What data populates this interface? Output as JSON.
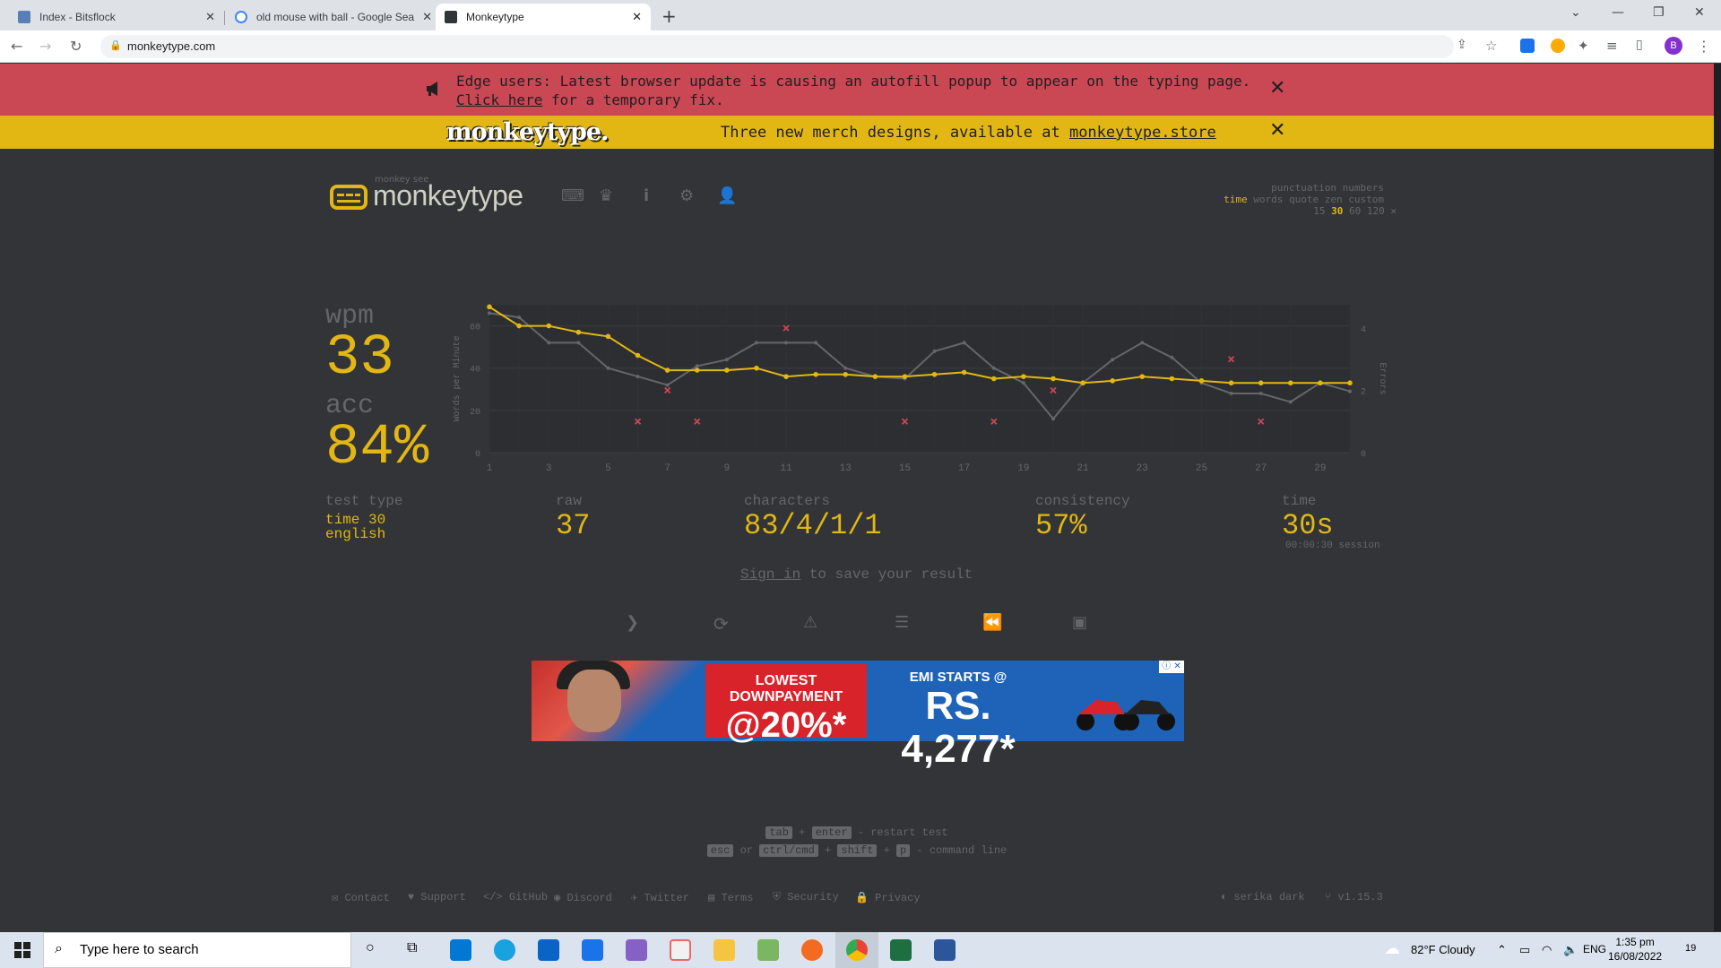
{
  "browser": {
    "tabs": [
      {
        "title": "Index - Bitsflock",
        "favicon_color": "#5a7fb8"
      },
      {
        "title": "old mouse with ball - Google Sea",
        "favicon_color": "#4285f4"
      },
      {
        "title": "Monkeytype",
        "favicon_color": "#323437"
      }
    ],
    "url": "monkeytype.com",
    "profile_initial": "B"
  },
  "alerts": {
    "edge_message": "Edge users: Latest browser update is causing an autofill popup to appear on the typing page.",
    "edge_link": "Click here",
    "edge_suffix": "for a temporary fix.",
    "merch_logo": "monkeytype.",
    "merch_message": "Three new merch designs, available at",
    "merch_link": "monkeytype.store"
  },
  "header": {
    "tagline": "monkey see",
    "name": "monkeytype",
    "config_line1": "punctuation numbers",
    "config_mode_active": "time",
    "config_modes": "words quote zen custom",
    "config_times_a": "15",
    "config_time_active": "30",
    "config_times_b": "60 120"
  },
  "result": {
    "wpm_label": "wpm",
    "wpm": "33",
    "acc_label": "acc",
    "acc": "84%",
    "test_type_label": "test type",
    "test_type_1": "time 30",
    "test_type_2": "english",
    "raw_label": "raw",
    "raw": "37",
    "characters_label": "characters",
    "characters": "83/4/1/1",
    "consistency_label": "consistency",
    "consistency": "57%",
    "time_label": "time",
    "time": "30s",
    "session": "00:00:30 session",
    "signin_link": "Sign in",
    "signin_text": "to save your result"
  },
  "chart_data": {
    "type": "line",
    "x": [
      1,
      2,
      3,
      4,
      5,
      6,
      7,
      8,
      9,
      10,
      11,
      12,
      13,
      14,
      15,
      16,
      17,
      18,
      19,
      20,
      21,
      22,
      23,
      24,
      25,
      26,
      27,
      28,
      29,
      30
    ],
    "x_ticks": [
      1,
      3,
      5,
      7,
      9,
      11,
      13,
      15,
      17,
      19,
      21,
      23,
      25,
      27,
      29
    ],
    "ylabel": "Words per Minute",
    "ylabel_right": "Errors",
    "ylim": [
      0,
      70
    ],
    "y_ticks": [
      0,
      20,
      40,
      60
    ],
    "y2lim": [
      0,
      4.75
    ],
    "y2_ticks": [
      0,
      2,
      4
    ],
    "series": [
      {
        "values": [
          69,
          60,
          60,
          57,
          55,
          46,
          39,
          39,
          39,
          40,
          36,
          37,
          37,
          36,
          36,
          37,
          38,
          35,
          36,
          35,
          33,
          34,
          36,
          35,
          34,
          33,
          33,
          33,
          33,
          33
        ],
        "color": "#e2b714"
      },
      {
        "values": [
          66,
          64,
          52,
          52,
          40,
          36,
          32,
          41,
          44,
          52,
          52,
          52,
          40,
          36,
          35,
          48,
          52,
          40,
          33,
          16,
          33,
          44,
          52,
          45,
          33,
          28,
          28,
          24,
          33,
          29
        ],
        "color": "#646669"
      }
    ],
    "errors": [
      {
        "x": 6,
        "y": 1
      },
      {
        "x": 7,
        "y": 2
      },
      {
        "x": 8,
        "y": 1
      },
      {
        "x": 11,
        "y": 4
      },
      {
        "x": 15,
        "y": 1
      },
      {
        "x": 18,
        "y": 1
      },
      {
        "x": 20,
        "y": 2
      },
      {
        "x": 26,
        "y": 3
      },
      {
        "x": 27,
        "y": 1
      }
    ],
    "error_color": "#ca4754",
    "grid": true
  },
  "ad": {
    "headline1": "LOWEST DOWNPAYMENT",
    "headline2": "@20%*",
    "emi1": "EMI STARTS @",
    "emi2": "RS. 4,277*"
  },
  "shortcuts": {
    "k1": "tab",
    "plus": "+",
    "k2": "enter",
    "restart": "- restart test",
    "k3": "esc",
    "or": "or",
    "k4": "ctrl/cmd",
    "k5": "shift",
    "k6": "p",
    "cmdline": "- command line"
  },
  "footer": {
    "contact": "Contact",
    "support": "Support",
    "github": "GitHub",
    "discord": "Discord",
    "twitter": "Twitter",
    "terms": "Terms",
    "security": "Security",
    "privacy": "Privacy",
    "theme": "serika dark",
    "version": "v1.15.3"
  },
  "taskbar": {
    "search_placeholder": "Type here to search",
    "weather": "82°F  Cloudy",
    "lang": "ENG",
    "time": "1:35 pm",
    "date": "16/08/2022",
    "notifications": "19"
  }
}
